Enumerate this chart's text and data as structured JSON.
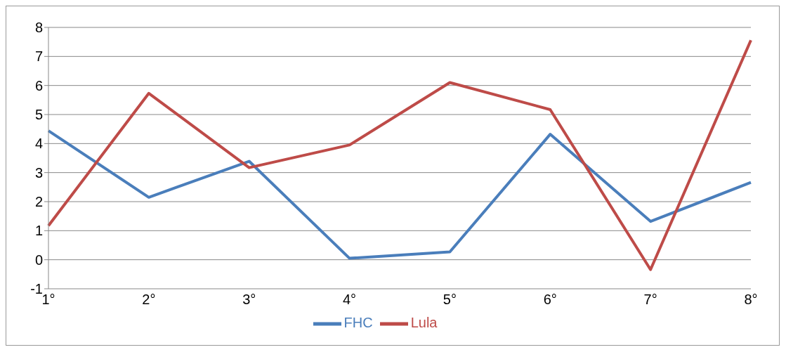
{
  "chart_data": {
    "type": "line",
    "categories": [
      "1°",
      "2°",
      "3°",
      "4°",
      "5°",
      "6°",
      "7°",
      "8°"
    ],
    "series": [
      {
        "name": "FHC",
        "color": "#4a7ebb",
        "values": [
          4.44,
          2.15,
          3.39,
          0.05,
          0.27,
          4.32,
          1.32,
          2.66
        ]
      },
      {
        "name": "Lula",
        "color": "#be4b48",
        "values": [
          1.17,
          5.73,
          3.17,
          3.95,
          6.1,
          5.17,
          -0.34,
          7.56
        ]
      }
    ],
    "ylim": [
      -1,
      8
    ],
    "yticks": [
      -1,
      0,
      1,
      2,
      3,
      4,
      5,
      6,
      7,
      8
    ],
    "grid": "y",
    "legend": "bottom",
    "marker": "none"
  }
}
